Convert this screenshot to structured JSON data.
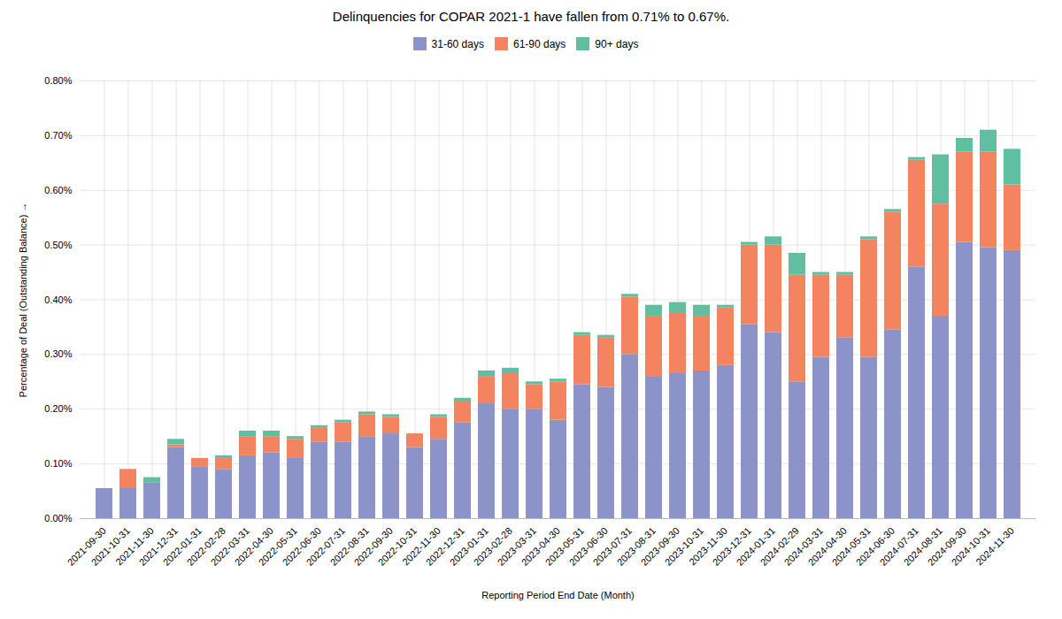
{
  "chart_data": {
    "type": "bar",
    "stacked": true,
    "title": "Delinquencies for COPAR 2021-1 have fallen from 0.71% to 0.67%.",
    "xlabel": "Reporting Period End Date (Month)",
    "ylabel": "Percentage of Deal (Outstanding Balance)",
    "categories": [
      "2021-09-30",
      "2021-10-31",
      "2021-11-30",
      "2021-12-31",
      "2022-01-31",
      "2022-02-28",
      "2022-03-31",
      "2022-04-30",
      "2022-05-31",
      "2022-06-30",
      "2022-07-31",
      "2022-08-31",
      "2022-09-30",
      "2022-10-31",
      "2022-11-30",
      "2022-12-31",
      "2023-01-31",
      "2023-02-28",
      "2023-03-31",
      "2023-04-30",
      "2023-05-31",
      "2023-06-30",
      "2023-07-31",
      "2023-08-31",
      "2023-09-30",
      "2023-10-31",
      "2023-11-30",
      "2023-12-31",
      "2024-01-31",
      "2024-02-29",
      "2024-03-31",
      "2024-04-30",
      "2024-05-31",
      "2024-06-30",
      "2024-07-31",
      "2024-08-31",
      "2024-09-30",
      "2024-10-31",
      "2024-11-30"
    ],
    "series": [
      {
        "name": "31-60 days",
        "color": "#8b93c9",
        "values": [
          0.00055,
          0.00055,
          0.00065,
          0.0013,
          0.00095,
          0.0009,
          0.00115,
          0.0012,
          0.0011,
          0.0014,
          0.0014,
          0.0015,
          0.00155,
          0.0013,
          0.00145,
          0.00175,
          0.0021,
          0.002,
          0.002,
          0.0018,
          0.00245,
          0.0024,
          0.003,
          0.0026,
          0.00265,
          0.0027,
          0.0028,
          0.00355,
          0.0034,
          0.0025,
          0.00295,
          0.0033,
          0.00295,
          0.00345,
          0.0046,
          0.0037,
          0.00505,
          0.00495,
          0.0049
        ]
      },
      {
        "name": "61-90 days",
        "color": "#f4845f",
        "values": [
          0.0,
          0.00035,
          0.0,
          5e-05,
          0.00015,
          0.0002,
          0.00035,
          0.0003,
          0.00035,
          0.00025,
          0.00035,
          0.0004,
          0.0003,
          0.00025,
          0.0004,
          0.0004,
          0.0005,
          0.00065,
          0.00045,
          0.0007,
          0.0009,
          0.0009,
          0.00105,
          0.0011,
          0.0011,
          0.001,
          0.00105,
          0.00145,
          0.0016,
          0.00195,
          0.0015,
          0.00115,
          0.00215,
          0.00215,
          0.00195,
          0.00205,
          0.00165,
          0.00175,
          0.0012
        ]
      },
      {
        "name": "90+ days",
        "color": "#5fbfa0",
        "values": [
          0.0,
          0.0,
          0.0001,
          0.0001,
          0.0,
          5e-05,
          0.0001,
          0.0001,
          5e-05,
          5e-05,
          5e-05,
          5e-05,
          5e-05,
          0.0,
          5e-05,
          5e-05,
          0.0001,
          0.0001,
          5e-05,
          5e-05,
          5e-05,
          5e-05,
          5e-05,
          0.0002,
          0.0002,
          0.0002,
          5e-05,
          5e-05,
          0.00015,
          0.0004,
          5e-05,
          5e-05,
          5e-05,
          5e-05,
          5e-05,
          0.0009,
          0.00025,
          0.0004,
          0.00065
        ]
      }
    ],
    "ylim": [
      0,
      0.008
    ],
    "yticks": [
      {
        "value": 0,
        "label": "0.00%"
      },
      {
        "value": 0.001,
        "label": "0.10%"
      },
      {
        "value": 0.002,
        "label": "0.20%"
      },
      {
        "value": 0.003,
        "label": "0.30%"
      },
      {
        "value": 0.004,
        "label": "0.40%"
      },
      {
        "value": 0.005,
        "label": "0.50%"
      },
      {
        "value": 0.006,
        "label": "0.60%"
      },
      {
        "value": 0.007,
        "label": "0.70%"
      },
      {
        "value": 0.008,
        "label": "0.80%"
      }
    ],
    "grid": true,
    "legend": "top"
  }
}
